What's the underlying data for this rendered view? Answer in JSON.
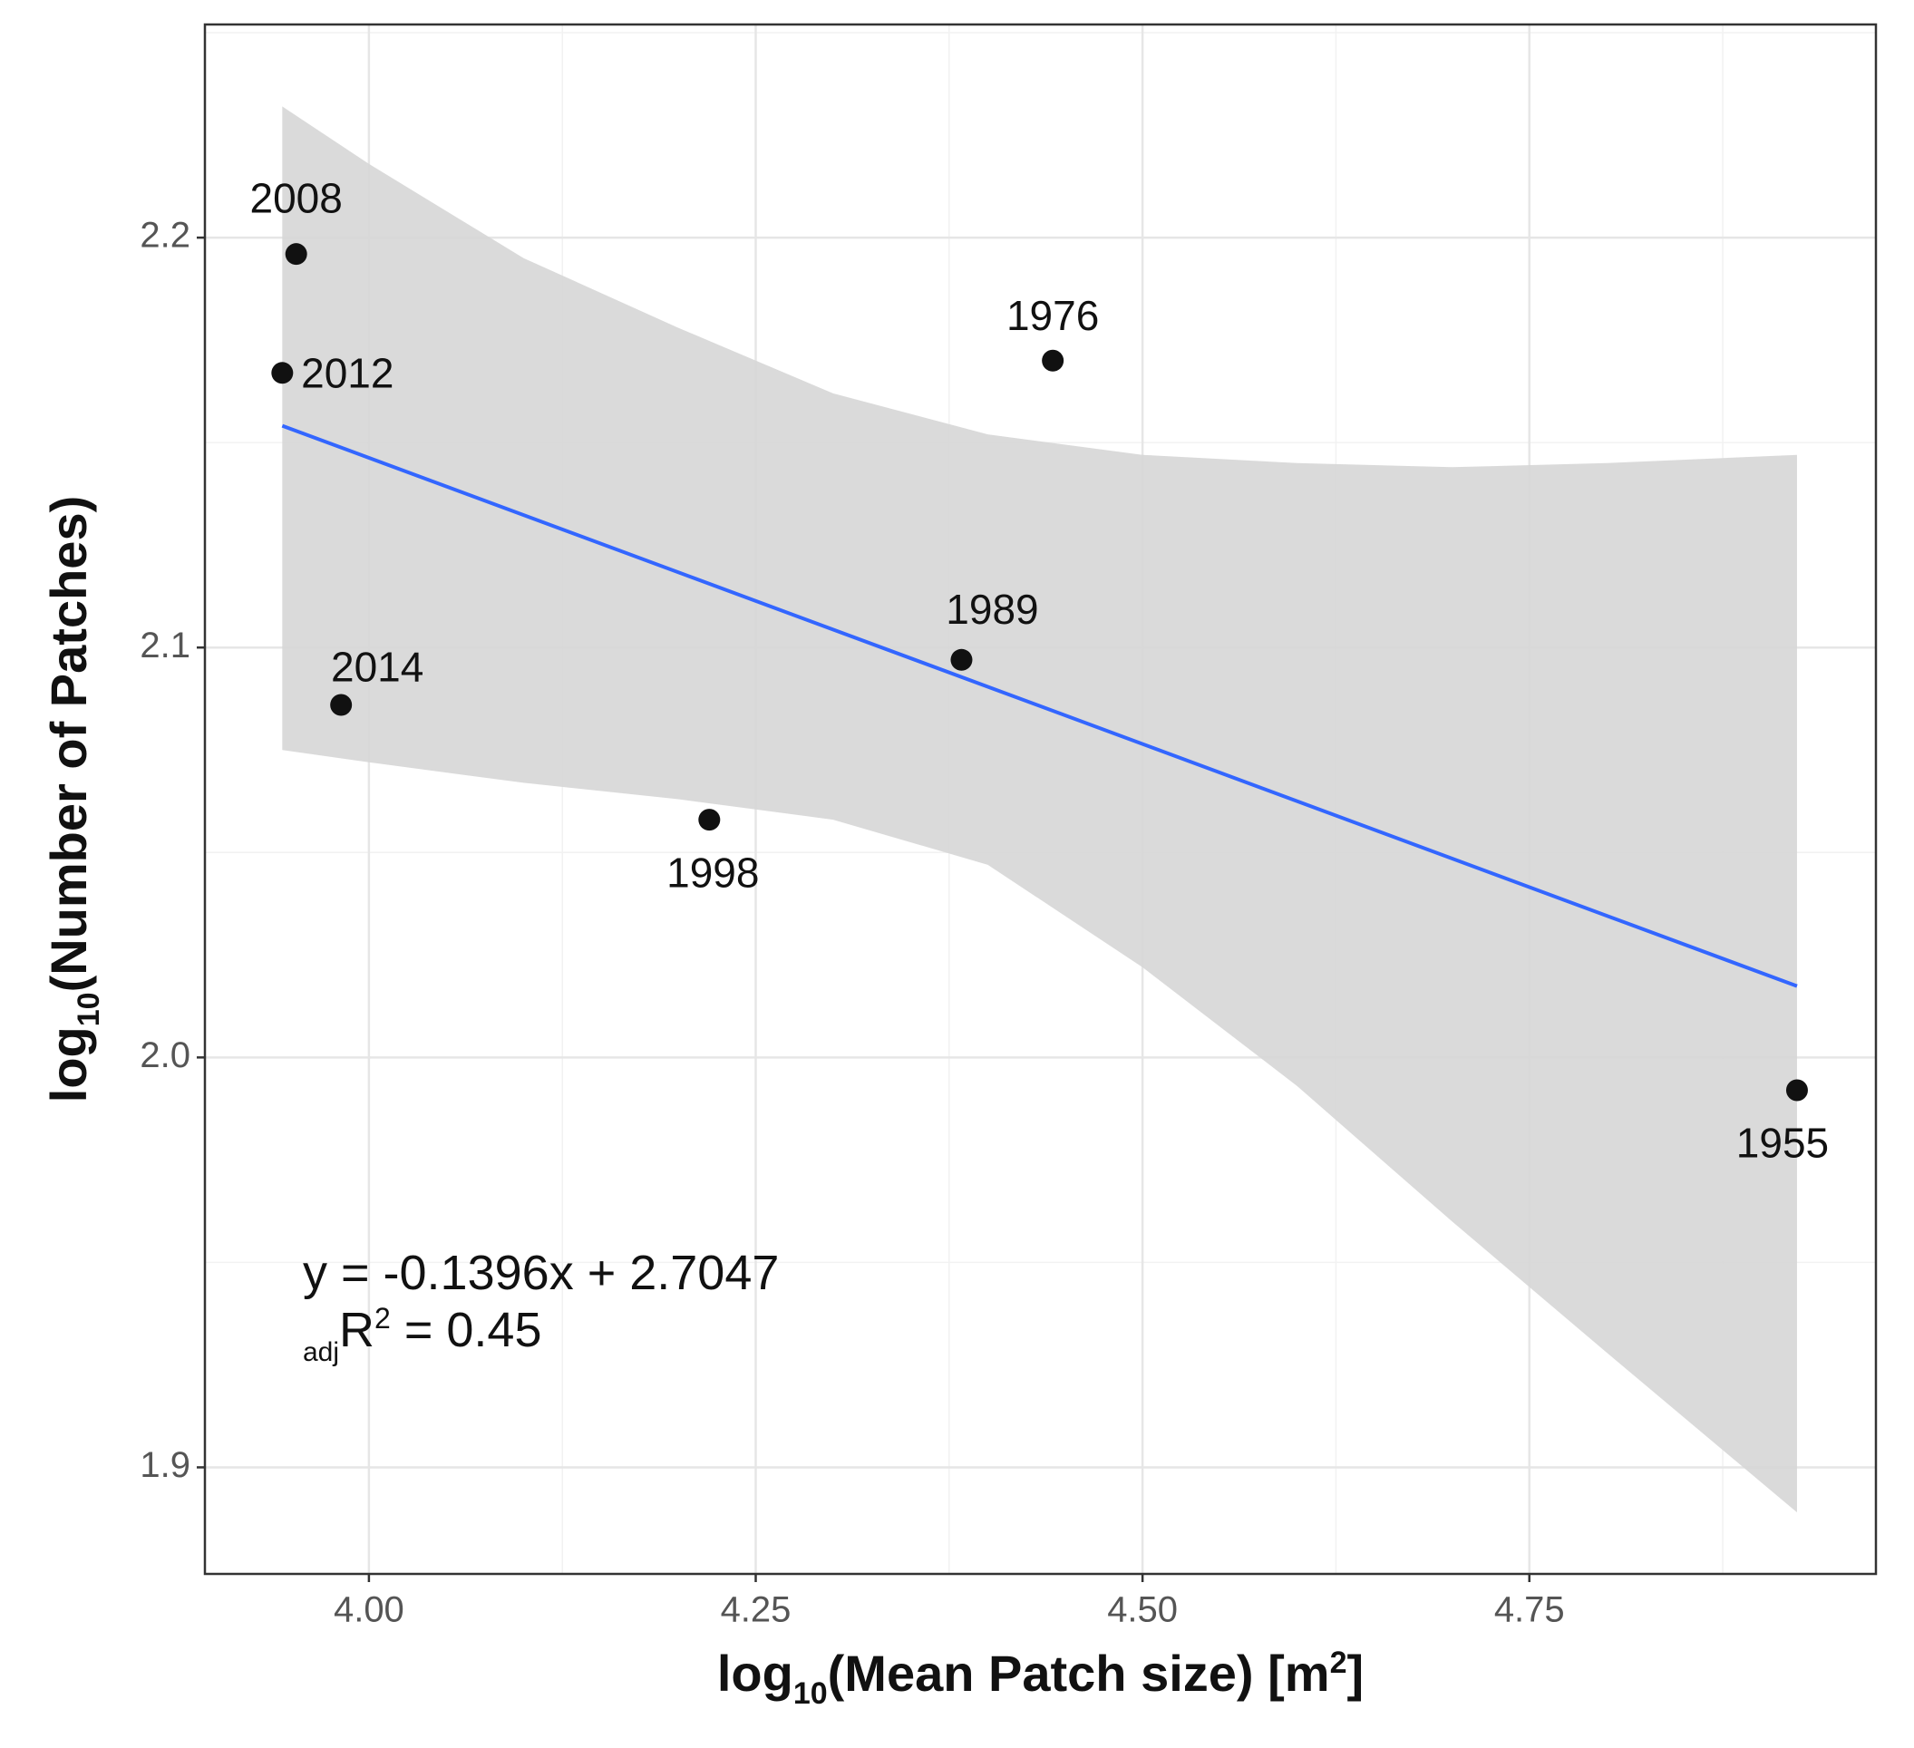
{
  "chart_data": {
    "type": "scatter",
    "x": [
      3.953,
      3.944,
      3.982,
      4.22,
      4.383,
      4.442,
      4.923
    ],
    "values": [
      2.196,
      2.167,
      2.086,
      2.058,
      2.097,
      2.17,
      1.992
    ],
    "labels": [
      "2008",
      "2012",
      "2014",
      "1998",
      "1989",
      "1976",
      "1955"
    ],
    "color": "#111111",
    "fit": {
      "x": [
        3.944,
        4.923
      ],
      "values": [
        2.1541,
        2.0174
      ],
      "color": "#3366ff"
    },
    "band": {
      "x": [
        3.944,
        4.0,
        4.1,
        4.2,
        4.3,
        4.4,
        4.5,
        4.6,
        4.7,
        4.8,
        4.923
      ],
      "upper": [
        2.232,
        2.218,
        2.195,
        2.178,
        2.162,
        2.152,
        2.147,
        2.145,
        2.144,
        2.145,
        2.147
      ],
      "lower": [
        2.075,
        2.072,
        2.067,
        2.063,
        2.058,
        2.047,
        2.022,
        1.993,
        1.96,
        1.928,
        1.889
      ],
      "color": "#d6d6d6"
    },
    "xlim": [
      3.894,
      4.974
    ],
    "ylim": [
      1.874,
      2.252
    ],
    "xticks": [
      {
        "value": 4,
        "label": "4.00"
      },
      4.25,
      {
        "value": 4.5,
        "label": "4.50"
      },
      4.75
    ],
    "yticks": [
      1.9,
      {
        "value": 2,
        "label": "2.0"
      },
      2.1,
      2.2
    ],
    "xminor": [
      4.125,
      4.375,
      4.625,
      4.875
    ],
    "yminor": [
      1.95,
      2.05,
      2.15,
      2.25
    ],
    "grid": true,
    "xlabel": [
      "log",
      "10",
      "(Mean Patch size) [m",
      "2",
      "]"
    ],
    "ylabel": [
      "log",
      "10",
      "(Number of Patches)"
    ],
    "annotation": {
      "equation": "y = -0.1396x + 2.7047",
      "r2": [
        "adj",
        "R",
        "2",
        " = 0.45"
      ]
    }
  }
}
